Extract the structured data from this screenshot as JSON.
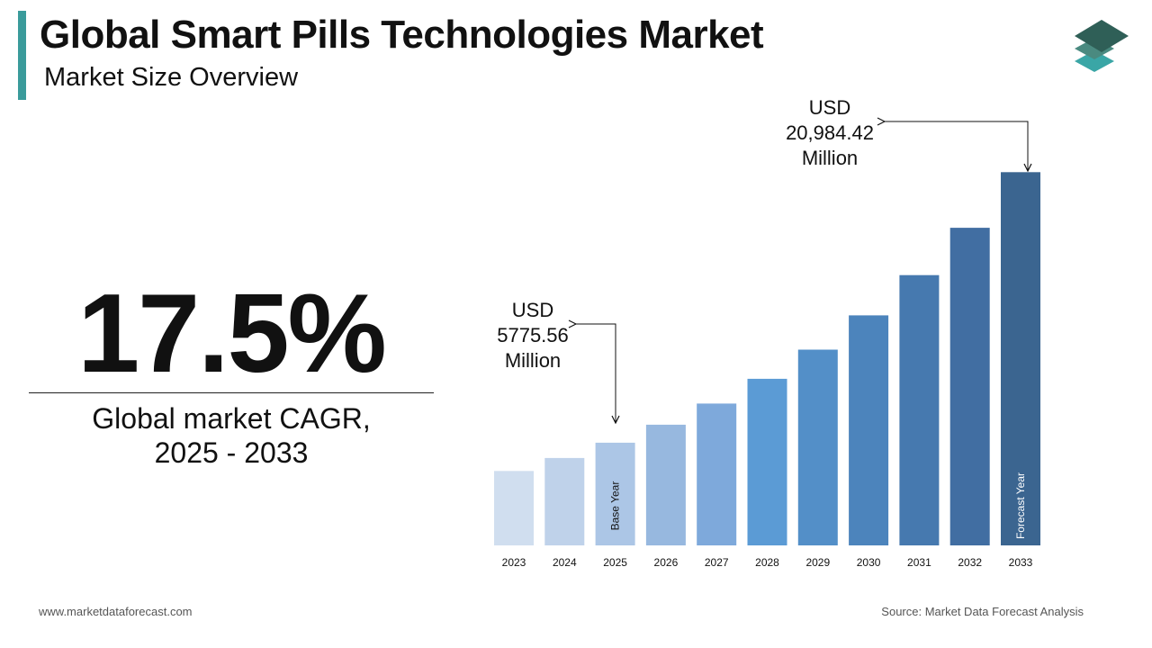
{
  "header": {
    "title": "Global Smart Pills Technologies Market",
    "subtitle": "Market Size Overview"
  },
  "cagr": {
    "value": "17.5%",
    "label_line1": "Global market CAGR,",
    "label_line2": "2025 - 2033"
  },
  "callouts": {
    "base": {
      "line1": "USD",
      "line2": "5775.56",
      "line3": "Million"
    },
    "forecast": {
      "line1": "USD",
      "line2": "20,984.42",
      "line3": "Million"
    }
  },
  "footer": {
    "website": "www.marketdataforecast.com",
    "source": "Source: Market Data Forecast Analysis"
  },
  "colors": {
    "accent": "#3a9b9b",
    "logo_dark": "#2f5f57",
    "logo_mid": "#4a8a80",
    "logo_light": "#3aa6a6"
  },
  "chart_data": {
    "type": "bar",
    "categories": [
      "2023",
      "2024",
      "2025",
      "2026",
      "2027",
      "2028",
      "2029",
      "2030",
      "2031",
      "2032",
      "2033"
    ],
    "values": [
      4184,
      4916,
      5775.56,
      6786,
      7974,
      9369,
      11009,
      12935,
      15199,
      17858,
      20984.42
    ],
    "ylim": [
      0,
      25000
    ],
    "bar_labels": {
      "2025": "Base Year",
      "2033": "Forecast Year"
    },
    "colors": [
      "#d0deef",
      "#bfd2ea",
      "#acc6e6",
      "#97b8df",
      "#7ea9db",
      "#5b9bd5",
      "#538fc8",
      "#4c84bc",
      "#4679af",
      "#416ea2",
      "#3b6590"
    ],
    "grid": false,
    "legend": "none"
  }
}
